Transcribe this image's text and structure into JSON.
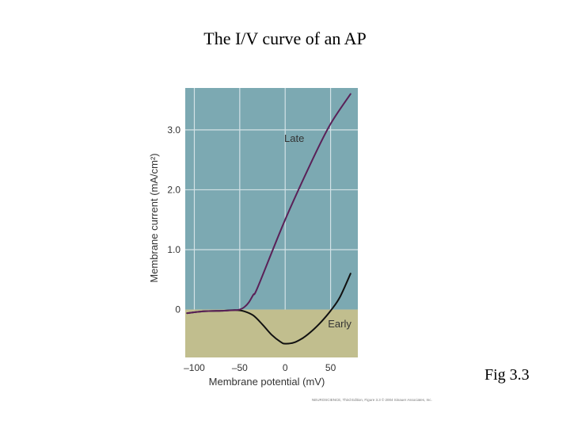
{
  "slide": {
    "title": "The I/V curve of an AP",
    "figure_label": "Fig 3.3",
    "credit": "NEUROSCIENCE, Third Edition, Figure 3.3 © 2004 Sinauer Associates, Inc."
  },
  "colors": {
    "positive_region": "#7ca9b2",
    "negative_region": "#c1be8e",
    "grid": "#d3e2e6",
    "late_line": "#5a2158",
    "early_line": "#111111"
  },
  "chart_data": {
    "type": "line",
    "title": "",
    "xlabel": "Membrane potential (mV)",
    "ylabel": "Membrane current (mA/cm²)",
    "xlim": [
      -110,
      80
    ],
    "ylim": [
      -0.8,
      3.7
    ],
    "x_ticks": [
      -100,
      -50,
      0,
      50
    ],
    "x_tick_labels": [
      "–100",
      "–50",
      "0",
      "50"
    ],
    "y_ticks": [
      0,
      1.0,
      2.0,
      3.0
    ],
    "y_tick_labels": [
      "0",
      "1.0",
      "2.0",
      "3.0"
    ],
    "grid": true,
    "series": [
      {
        "name": "Late",
        "label_at": [
          10,
          2.8
        ],
        "x": [
          -108,
          -90,
          -70,
          -55,
          -50,
          -45,
          -40,
          -35,
          -30,
          0,
          30,
          50,
          72
        ],
        "y": [
          -0.06,
          -0.03,
          -0.02,
          -0.01,
          0.0,
          0.04,
          0.12,
          0.25,
          0.38,
          1.5,
          2.5,
          3.1,
          3.6
        ]
      },
      {
        "name": "Early",
        "label_at": [
          60,
          -0.3
        ],
        "x": [
          -108,
          -90,
          -70,
          -55,
          -45,
          -35,
          -25,
          -15,
          -5,
          0,
          10,
          20,
          30,
          40,
          50,
          60,
          72
        ],
        "y": [
          -0.06,
          -0.03,
          -0.02,
          -0.01,
          -0.03,
          -0.1,
          -0.25,
          -0.42,
          -0.54,
          -0.57,
          -0.55,
          -0.47,
          -0.35,
          -0.2,
          -0.02,
          0.2,
          0.6
        ]
      }
    ]
  }
}
